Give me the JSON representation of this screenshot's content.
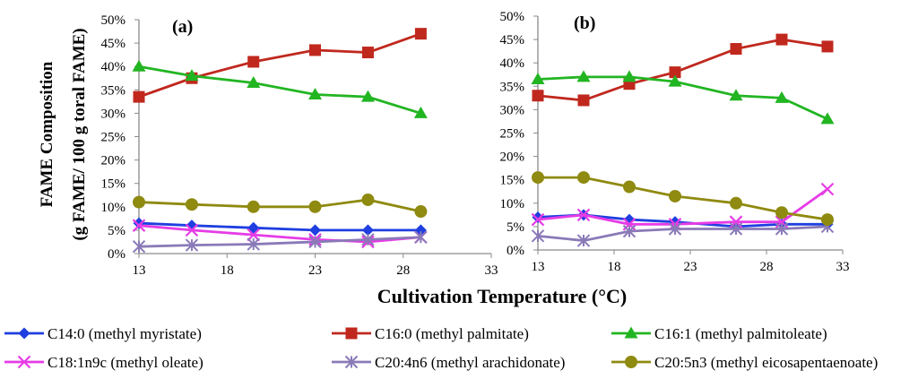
{
  "chart_data": {
    "type": "line",
    "ylabel_line1": "FAME Composition",
    "ylabel_line2": "(g FAME/ 100 g toral FAME)",
    "xlabel": "Cultivation Temperature (°C)",
    "xlim": [
      13,
      33
    ],
    "xticks": [
      13,
      18,
      23,
      28,
      33
    ],
    "ylim": [
      0,
      50
    ],
    "yticks": [
      "0%",
      "5%",
      "10%",
      "15%",
      "20%",
      "25%",
      "30%",
      "35%",
      "40%",
      "45%",
      "50%"
    ],
    "legend": [
      {
        "key": "c14",
        "label": "C14:0 (methyl myristate)",
        "color": "#1f3fe0",
        "marker": "diamond"
      },
      {
        "key": "c16",
        "label": "C16:0 (methyl palmitate)",
        "color": "#c0281e",
        "marker": "square"
      },
      {
        "key": "c161",
        "label": "C16:1 (methyl palmitoleate)",
        "color": "#22b522",
        "marker": "triangle"
      },
      {
        "key": "c18",
        "label": "C18:1n9c (methyl oleate)",
        "color": "#e63ce6",
        "marker": "x"
      },
      {
        "key": "c20a",
        "label": "C20:4n6 (methyl arachidonate)",
        "color": "#8a7ab8",
        "marker": "star"
      },
      {
        "key": "c20e",
        "label": "C20:5n3 (methyl eicosapentaenoate)",
        "color": "#8f8a10",
        "marker": "circle"
      }
    ],
    "panels": [
      {
        "label": "(a)",
        "show_ylabels": true,
        "series": [
          {
            "key": "c14",
            "x": [
              13,
              16,
              19.5,
              23,
              26,
              29
            ],
            "y": [
              6.5,
              6,
              5.5,
              5,
              5,
              5
            ]
          },
          {
            "key": "c16",
            "x": [
              13,
              16,
              19.5,
              23,
              26,
              29
            ],
            "y": [
              33.5,
              37.5,
              41,
              43.5,
              43,
              47
            ]
          },
          {
            "key": "c161",
            "x": [
              13,
              16,
              19.5,
              23,
              26,
              29
            ],
            "y": [
              40,
              38,
              36.5,
              34,
              33.5,
              30
            ]
          },
          {
            "key": "c18",
            "x": [
              13,
              16,
              19.5,
              23,
              26,
              29
            ],
            "y": [
              6,
              5,
              4,
              3,
              2.5,
              3.5
            ]
          },
          {
            "key": "c20a",
            "x": [
              13,
              16,
              19.5,
              23,
              26,
              29
            ],
            "y": [
              1.5,
              1.8,
              2,
              2.5,
              3,
              3.5
            ]
          },
          {
            "key": "c20e",
            "x": [
              13,
              16,
              19.5,
              23,
              26,
              29
            ],
            "y": [
              11,
              10.5,
              10,
              10,
              11.5,
              9
            ]
          }
        ]
      },
      {
        "label": "(b)",
        "show_ylabels": true,
        "series": [
          {
            "key": "c14",
            "x": [
              13,
              16,
              19,
              22,
              26,
              29,
              32
            ],
            "y": [
              7,
              7.5,
              6.5,
              6,
              5,
              5.5,
              5.5
            ]
          },
          {
            "key": "c16",
            "x": [
              13,
              16,
              19,
              22,
              26,
              29,
              32
            ],
            "y": [
              33,
              32,
              35.5,
              38,
              43,
              45,
              43.5
            ]
          },
          {
            "key": "c161",
            "x": [
              13,
              16,
              19,
              22,
              26,
              29,
              32
            ],
            "y": [
              36.5,
              37,
              37,
              36,
              33,
              32.5,
              28
            ]
          },
          {
            "key": "c18",
            "x": [
              13,
              16,
              19,
              22,
              26,
              29,
              32
            ],
            "y": [
              6.5,
              7.5,
              5.5,
              5.5,
              6,
              6,
              13
            ]
          },
          {
            "key": "c20a",
            "x": [
              13,
              16,
              19,
              22,
              26,
              29,
              32
            ],
            "y": [
              3,
              2,
              4,
              4.5,
              4.5,
              4.5,
              5
            ]
          },
          {
            "key": "c20e",
            "x": [
              13,
              16,
              19,
              22,
              26,
              29,
              32
            ],
            "y": [
              15.5,
              15.5,
              13.5,
              11.5,
              10,
              8,
              6.5
            ]
          }
        ]
      }
    ]
  }
}
